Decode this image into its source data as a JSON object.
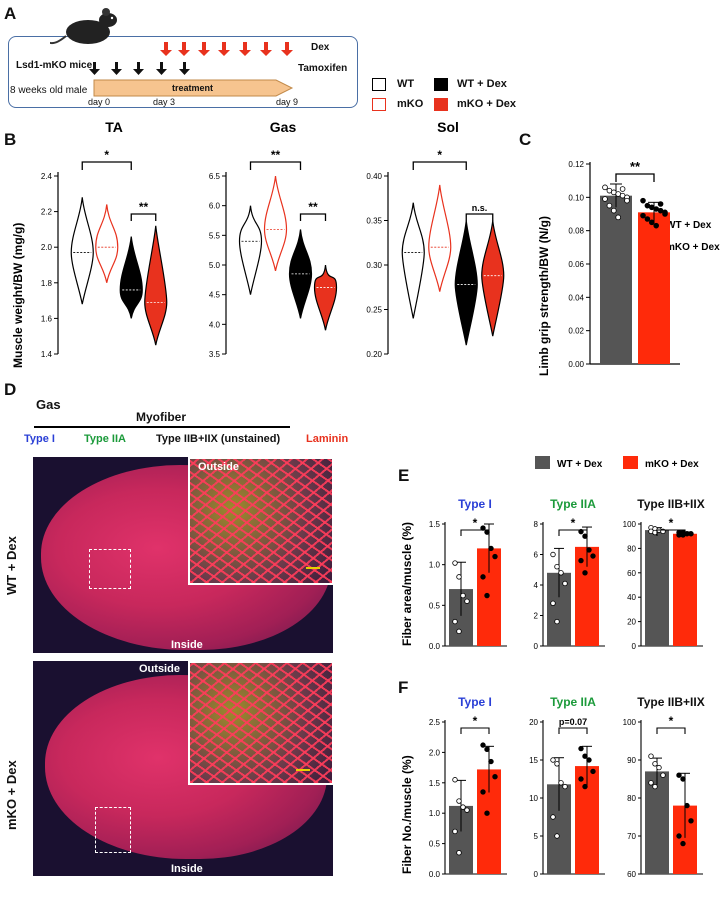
{
  "panels": {
    "A": "A",
    "B": "B",
    "C": "C",
    "D": "D",
    "E": "E",
    "F": "F"
  },
  "panelA": {
    "mouse_label": "Lsd1-mKO mice",
    "age_label": "8 weeks old male",
    "dex_label": "Dex",
    "tam_label": "Tamoxifen",
    "treatment_label": "treatment",
    "day0": "day 0",
    "day3": "day 3",
    "day9": "day 9",
    "legend": {
      "wt": "WT",
      "mko": "mKO",
      "wtdex": "WT + Dex",
      "mkodex": "mKO + Dex"
    }
  },
  "colors": {
    "wt": "#000000",
    "mko": "#e8321e",
    "grey": "#555555",
    "red": "#ff2a0a",
    "green": "#1b9a3a",
    "blue": "#2a3fd6"
  },
  "chart_data": [
    {
      "type": "violin",
      "id": "TA",
      "title": "TA",
      "ylabel": "Muscle weight/BW (mg/g)",
      "ylim": [
        1.4,
        2.4
      ],
      "ticks": [
        "1.4",
        "1.6",
        "1.8",
        "2.0",
        "2.2",
        "2.4"
      ],
      "tick_values": [
        1.4,
        1.6,
        1.8,
        2.0,
        2.2,
        2.4
      ],
      "groups": [
        "WT",
        "mKO",
        "WT + Dex",
        "mKO + Dex"
      ],
      "range": [
        [
          1.68,
          2.28
        ],
        [
          1.8,
          2.24
        ],
        [
          1.6,
          2.06
        ],
        [
          1.45,
          2.12
        ]
      ],
      "median": [
        1.97,
        2.0,
        1.76,
        1.69
      ],
      "sig": [
        "*",
        "**"
      ]
    },
    {
      "type": "violin",
      "id": "Gas",
      "title": "Gas",
      "ylim": [
        3.5,
        6.5
      ],
      "ticks": [
        "3.5",
        "4.0",
        "4.5",
        "5.0",
        "5.5",
        "6.0",
        "6.5"
      ],
      "tick_values": [
        3.5,
        4.0,
        4.5,
        5.0,
        5.5,
        6.0,
        6.5
      ],
      "groups": [
        "WT",
        "mKO",
        "WT + Dex",
        "mKO + Dex"
      ],
      "range": [
        [
          4.5,
          6.0
        ],
        [
          4.9,
          6.5
        ],
        [
          4.1,
          5.6
        ],
        [
          3.9,
          5.0
        ]
      ],
      "median": [
        5.4,
        5.6,
        4.85,
        4.62
      ],
      "sig": [
        "**",
        "**"
      ]
    },
    {
      "type": "violin",
      "id": "Sol",
      "title": "Sol",
      "ylim": [
        0.2,
        0.4
      ],
      "ticks": [
        "0.20",
        "0.25",
        "0.30",
        "0.35",
        "0.40"
      ],
      "tick_values": [
        0.2,
        0.25,
        0.3,
        0.35,
        0.4
      ],
      "groups": [
        "WT",
        "mKO",
        "WT + Dex",
        "mKO + Dex"
      ],
      "range": [
        [
          0.24,
          0.37
        ],
        [
          0.27,
          0.39
        ],
        [
          0.21,
          0.35
        ],
        [
          0.22,
          0.35
        ]
      ],
      "median": [
        0.314,
        0.32,
        0.278,
        0.288
      ],
      "sig": [
        "*",
        "n.s."
      ]
    },
    {
      "type": "bar",
      "id": "C",
      "ylabel": "Limb grip strength/BW (N/g)",
      "ylim": [
        0,
        0.12
      ],
      "ticks": [
        "0.00",
        "0.02",
        "0.04",
        "0.06",
        "0.08",
        "0.10",
        "0.12"
      ],
      "tick_values": [
        0,
        0.02,
        0.04,
        0.06,
        0.08,
        0.1,
        0.12
      ],
      "categories": [
        "WT + Dex",
        "mKO + Dex"
      ],
      "values": [
        0.101,
        0.091
      ],
      "err": [
        0.007,
        0.006
      ],
      "points": [
        [
          0.106,
          0.104,
          0.103,
          0.102,
          0.101,
          0.1,
          0.099,
          0.095,
          0.092,
          0.088,
          0.105,
          0.098
        ],
        [
          0.098,
          0.095,
          0.094,
          0.093,
          0.092,
          0.091,
          0.089,
          0.087,
          0.085,
          0.083,
          0.096,
          0.09
        ]
      ],
      "sig": "**",
      "legend": [
        "WT + Dex",
        "mKO + Dex"
      ]
    },
    {
      "type": "bar",
      "id": "E",
      "ylabel": "Fiber area/muscle (%)",
      "legend": [
        "WT + Dex",
        "mKO + Dex"
      ],
      "subplots": [
        {
          "title": "Type I",
          "ylim": [
            0,
            1.5
          ],
          "ticks": [
            "0.0",
            "0.5",
            "1.0",
            "1.5"
          ],
          "tick_values": [
            0,
            0.5,
            1.0,
            1.5
          ],
          "values": [
            0.7,
            1.2
          ],
          "err": [
            0.33,
            0.3
          ],
          "points": [
            [
              1.02,
              0.85,
              0.62,
              0.55,
              0.3,
              0.18
            ],
            [
              1.45,
              1.4,
              1.2,
              1.1,
              0.85,
              0.62
            ]
          ],
          "sig": "*"
        },
        {
          "title": "Type IIA",
          "ylim": [
            0,
            8
          ],
          "ticks": [
            "0",
            "2",
            "4",
            "6",
            "8"
          ],
          "tick_values": [
            0,
            2,
            4,
            6,
            8
          ],
          "values": [
            4.8,
            6.5
          ],
          "err": [
            1.6,
            1.3
          ],
          "points": [
            [
              6.0,
              5.2,
              4.8,
              4.1,
              2.8,
              1.6
            ],
            [
              7.5,
              7.2,
              6.3,
              5.9,
              5.6,
              4.8
            ]
          ],
          "sig": "*"
        },
        {
          "title": "Type IIB+IIX",
          "ylim": [
            0,
            100
          ],
          "ticks": [
            "0",
            "20",
            "40",
            "60",
            "80",
            "100"
          ],
          "tick_values": [
            0,
            20,
            40,
            60,
            80,
            100
          ],
          "values": [
            95,
            92
          ],
          "err": [
            2,
            1.5
          ],
          "points": [
            [
              97,
              96,
              95,
              94,
              94,
              93
            ],
            [
              93,
              93,
              92,
              92,
              91,
              91
            ]
          ],
          "sig": "*"
        }
      ]
    },
    {
      "type": "bar",
      "id": "F",
      "ylabel": "Fiber No./muscle (%)",
      "subplots": [
        {
          "title": "Type I",
          "ylim": [
            0,
            2.5
          ],
          "ticks": [
            "0.0",
            "0.5",
            "1.0",
            "1.5",
            "2.0",
            "2.5"
          ],
          "tick_values": [
            0,
            0.5,
            1.0,
            1.5,
            2.0,
            2.5
          ],
          "values": [
            1.12,
            1.72
          ],
          "err": [
            0.42,
            0.38
          ],
          "points": [
            [
              1.55,
              1.2,
              1.1,
              1.05,
              0.7,
              0.35
            ],
            [
              2.12,
              2.05,
              1.85,
              1.6,
              1.35,
              1.0
            ]
          ],
          "sig": "*"
        },
        {
          "title": "Type IIA",
          "ylim": [
            0,
            20
          ],
          "ticks": [
            "0",
            "5",
            "10",
            "15",
            "20"
          ],
          "tick_values": [
            0,
            5,
            10,
            15,
            20
          ],
          "values": [
            11.8,
            14.2
          ],
          "err": [
            3.5,
            2.6
          ],
          "points": [
            [
              15.0,
              14.5,
              12.0,
              11.5,
              7.5,
              5.0
            ],
            [
              16.5,
              15.5,
              15.0,
              13.5,
              12.5,
              11.5
            ]
          ],
          "sig": "p=0.07"
        },
        {
          "title": "Type IIB+IIX",
          "ylim": [
            60,
            100
          ],
          "ticks": [
            "60",
            "70",
            "80",
            "90",
            "100"
          ],
          "tick_values": [
            60,
            70,
            80,
            90,
            100
          ],
          "values": [
            87,
            78
          ],
          "err": [
            3.5,
            8.5
          ],
          "points": [
            [
              91,
              89,
              88,
              86,
              84,
              83
            ],
            [
              86,
              85,
              78,
              74,
              70,
              68
            ]
          ],
          "sig": "*"
        }
      ]
    }
  ],
  "panelD": {
    "muscle": "Gas",
    "myofiber": "Myofiber",
    "stain_type1": "Type I",
    "stain_type2a": "Type IIA",
    "stain_unstained": "Type IIB+IIX (unstained)",
    "stain_laminin": "Laminin",
    "row1": "WT + Dex",
    "row2": "mKO + Dex",
    "outside": "Outside",
    "inside": "Inside"
  }
}
